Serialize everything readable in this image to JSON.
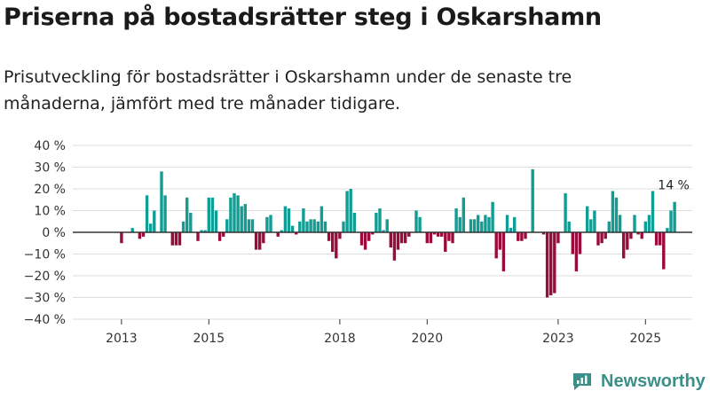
{
  "header": {
    "title": "Priserna på bostadsrätter steg i Oskarshamn",
    "subtitle": "Prisutveckling för bostadsrätter i Oskarshamn under de senaste tre månaderna, jämfört med tre månader tidigare."
  },
  "brand": {
    "name": "Newsworthy",
    "color": "#3a8f88"
  },
  "colors": {
    "positive": "#129d94",
    "negative": "#9b0a3c",
    "zero_line": "#333333",
    "grid": "#dddddd"
  },
  "chart_data": {
    "type": "bar",
    "title": "Prisutveckling för bostadsrätter i Oskarshamn",
    "ylabel": "",
    "xlabel": "",
    "ylim": [
      -40,
      40
    ],
    "y_ticks": [
      -40,
      -30,
      -20,
      -10,
      0,
      10,
      20,
      30,
      40
    ],
    "y_tick_labels": [
      "−40 %",
      "−30 %",
      "−20 %",
      "−10 %",
      "0 %",
      "10 %",
      "20 %",
      "30 %",
      "40 %"
    ],
    "x_start_month": "2012-01",
    "x_tick_labels": [
      {
        "label": "2013",
        "month": "2013-01"
      },
      {
        "label": "2015",
        "month": "2015-01"
      },
      {
        "label": "2018",
        "month": "2018-01"
      },
      {
        "label": "2020",
        "month": "2020-01"
      },
      {
        "label": "2023",
        "month": "2023-01"
      },
      {
        "label": "2025",
        "month": "2025-01"
      }
    ],
    "annotation": {
      "text": "14 %",
      "target": "last"
    },
    "values": [
      null,
      null,
      null,
      null,
      null,
      null,
      null,
      null,
      null,
      null,
      null,
      null,
      -5,
      null,
      null,
      2,
      null,
      -3,
      -2,
      17,
      4,
      10,
      null,
      28,
      17,
      null,
      -6,
      -6,
      -6,
      5,
      16,
      9,
      null,
      -4,
      1,
      1,
      16,
      16,
      10,
      -4,
      -2,
      6,
      16,
      18,
      17,
      12,
      13,
      6,
      6,
      -8,
      -8,
      -5,
      7,
      8,
      null,
      -2,
      1,
      12,
      11,
      3,
      -1,
      5,
      11,
      5,
      6,
      6,
      5,
      12,
      5,
      -4,
      -9,
      -12,
      -3,
      5,
      19,
      20,
      9,
      null,
      -6,
      -8,
      -4,
      -1,
      9,
      11,
      1,
      6,
      -7,
      -13,
      -8,
      -5,
      -5,
      -2,
      null,
      10,
      7,
      null,
      -5,
      -5,
      -1,
      -2,
      -2,
      -9,
      -4,
      -5,
      11,
      7,
      16,
      null,
      6,
      6,
      8,
      5,
      8,
      7,
      14,
      -12,
      -8,
      -18,
      8,
      2,
      7,
      -4,
      -4,
      -3,
      null,
      29,
      null,
      null,
      -1,
      -30,
      -29,
      -28,
      -5,
      null,
      18,
      5,
      -10,
      -18,
      -10,
      null,
      12,
      6,
      10,
      -6,
      -5,
      -3,
      5,
      19,
      16,
      8,
      -12,
      -8,
      -3,
      8,
      -1,
      -3,
      5,
      8,
      19,
      -6,
      -6,
      -17,
      2,
      10,
      14
    ]
  }
}
